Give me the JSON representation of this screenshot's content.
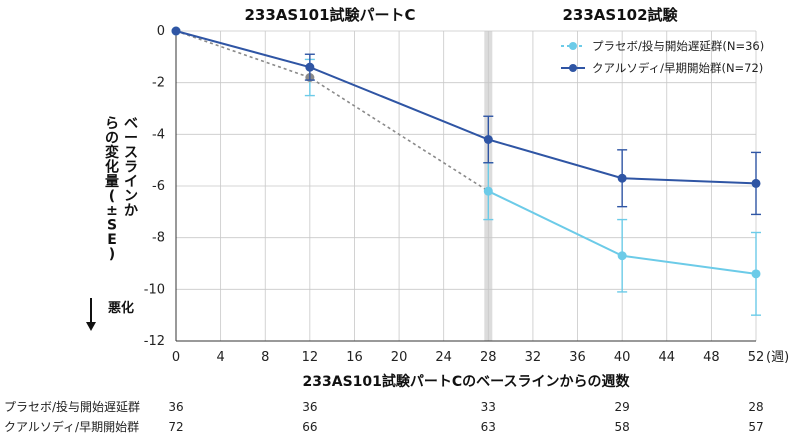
{
  "chart_data": {
    "type": "line",
    "section_titles": {
      "left": "233AS101試験パートC",
      "right": "233AS102試験"
    },
    "xlabel": "233AS101試験パートCのベースラインからの週数",
    "x_unit": "(週)",
    "ylabel": "ベースラインからの変化量(±SE)",
    "worse_label": "悪化",
    "xlim": [
      0,
      52
    ],
    "ylim": [
      -12,
      0
    ],
    "x_ticks": [
      0,
      4,
      8,
      12,
      16,
      20,
      24,
      28,
      32,
      36,
      40,
      44,
      48,
      52
    ],
    "y_ticks": [
      0,
      -2,
      -4,
      -6,
      -8,
      -10,
      -12
    ],
    "divider_week": 28,
    "legend_position": "top-right",
    "series": [
      {
        "name": "プラセボ/投与開始遅延群(N=36)",
        "color": "#6ccbe8",
        "dashed_color": "#8a8a8a",
        "x": [
          0,
          12,
          28,
          40,
          52
        ],
        "y": [
          0,
          -1.8,
          -6.2,
          -8.7,
          -9.4
        ],
        "se": [
          0,
          0.7,
          1.1,
          1.4,
          1.6
        ]
      },
      {
        "name": "クアルソディ/早期開始群(N=72)",
        "color": "#2f55a4",
        "x": [
          0,
          12,
          28,
          40,
          52
        ],
        "y": [
          0,
          -1.4,
          -4.2,
          -5.7,
          -5.9
        ],
        "se": [
          0,
          0.5,
          0.9,
          1.1,
          1.2
        ]
      }
    ],
    "risk_table": {
      "rows": [
        {
          "label": "プラセボ/投与開始遅延群",
          "counts": [
            "36",
            "36",
            "33",
            "29",
            "28"
          ]
        },
        {
          "label": "クアルソディ/早期開始群",
          "counts": [
            "72",
            "66",
            "63",
            "58",
            "57"
          ]
        }
      ]
    }
  }
}
